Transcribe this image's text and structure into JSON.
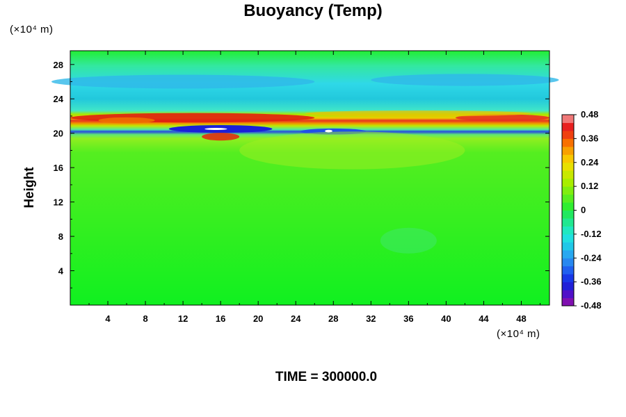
{
  "chart_data": {
    "type": "heatmap",
    "title": "Buoyancy (Temp)",
    "xlabel": "",
    "ylabel": "Height",
    "x_unit": "(×10⁴ m)",
    "y_unit": "(×10⁴ m)",
    "xlim": [
      0,
      51
    ],
    "ylim": [
      0,
      29.6
    ],
    "x_ticks": [
      4,
      8,
      12,
      16,
      20,
      24,
      28,
      32,
      36,
      40,
      44,
      48
    ],
    "y_ticks": [
      4,
      8,
      12,
      16,
      20,
      24,
      28
    ],
    "colorbar": {
      "range": [
        -0.48,
        0.48
      ],
      "levels": 24,
      "tick_labels": [
        "0.48",
        "0.36",
        "0.24",
        "0.12",
        "0",
        "-0.12",
        "-0.24",
        "-0.36",
        "-0.48"
      ],
      "tick_values": [
        0.48,
        0.36,
        0.24,
        0.12,
        0,
        -0.12,
        -0.24,
        -0.36,
        -0.48
      ]
    },
    "field_description_by_height": [
      {
        "height": 27.5,
        "value": 0.0
      },
      {
        "height": 25.5,
        "value": -0.14
      },
      {
        "height": 23.2,
        "value": -0.05
      },
      {
        "height": 22.4,
        "value": 0.15
      },
      {
        "height": 21.6,
        "value": 0.4
      },
      {
        "height": 20.4,
        "value": -0.4
      },
      {
        "height": 19.5,
        "value": 0.3
      },
      {
        "height": 12.0,
        "value": 0.02
      }
    ],
    "footer": "TIME = 300000.0"
  }
}
